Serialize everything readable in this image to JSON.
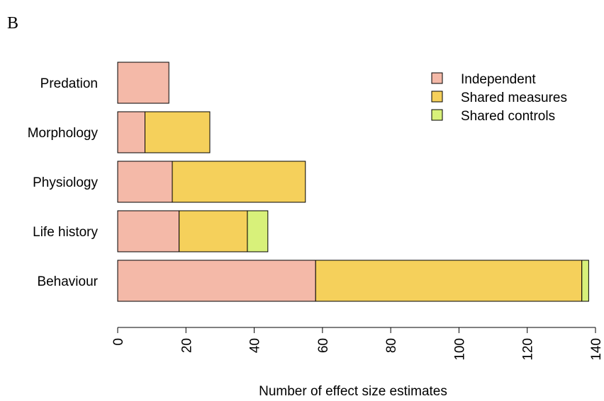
{
  "panel_label": "B",
  "chart_data": {
    "type": "bar",
    "orientation": "horizontal",
    "stacked": true,
    "categories": [
      "Behaviour",
      "Life history",
      "Physiology",
      "Morphology",
      "Predation"
    ],
    "series": [
      {
        "name": "Independent",
        "values": [
          58,
          18,
          16,
          8,
          15
        ],
        "color": "#F4B9A8"
      },
      {
        "name": "Shared measures",
        "values": [
          78,
          20,
          39,
          19,
          0
        ],
        "color": "#F5D05B"
      },
      {
        "name": "Shared controls",
        "values": [
          2,
          6,
          0,
          0,
          0
        ],
        "color": "#D8F17A"
      }
    ],
    "xlabel": "Number of effect size estimates",
    "ylabel": "",
    "xlim": [
      0,
      140
    ],
    "x_ticks": [
      "0",
      "20",
      "40",
      "60",
      "80",
      "100",
      "120",
      "140"
    ],
    "grid": false,
    "legend_position": "top-right"
  }
}
